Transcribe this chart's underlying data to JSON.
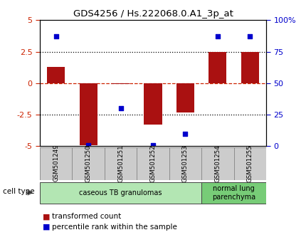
{
  "title": "GDS4256 / Hs.222068.0.A1_3p_at",
  "samples": [
    "GSM501249",
    "GSM501250",
    "GSM501251",
    "GSM501252",
    "GSM501253",
    "GSM501254",
    "GSM501255"
  ],
  "transformed_counts": [
    1.3,
    -4.9,
    -0.05,
    -3.3,
    -2.3,
    2.5,
    2.5
  ],
  "percentile_ranks": [
    87,
    1,
    30,
    1,
    10,
    87,
    87
  ],
  "ylim_left": [
    -5,
    5
  ],
  "ylim_right": [
    0,
    100
  ],
  "yticks_left": [
    -5,
    -2.5,
    0,
    2.5,
    5
  ],
  "yticks_right": [
    0,
    25,
    50,
    75,
    100
  ],
  "ytick_labels_left": [
    "-5",
    "-2.5",
    "0",
    "2.5",
    "5"
  ],
  "ytick_labels_right": [
    "0",
    "25",
    "50",
    "75",
    "100%"
  ],
  "hlines_dotted": [
    -2.5,
    2.5
  ],
  "bar_color": "#aa1111",
  "dot_color": "#0000cc",
  "bar_width": 0.55,
  "cell_type_groups": [
    {
      "label": "caseous TB granulomas",
      "indices": [
        0,
        1,
        2,
        3,
        4
      ],
      "color": "#b3e6b3"
    },
    {
      "label": "normal lung\nparenchyma",
      "indices": [
        5,
        6
      ],
      "color": "#77cc77"
    }
  ],
  "cell_type_label": "cell type",
  "legend_items": [
    {
      "color": "#aa1111",
      "label": "transformed count"
    },
    {
      "color": "#0000cc",
      "label": "percentile rank within the sample"
    }
  ],
  "background_color": "#ffffff",
  "tick_label_color_left": "#cc2200",
  "tick_label_color_right": "#0000cc",
  "sample_box_color": "#cccccc",
  "sample_box_edge": "#888888"
}
